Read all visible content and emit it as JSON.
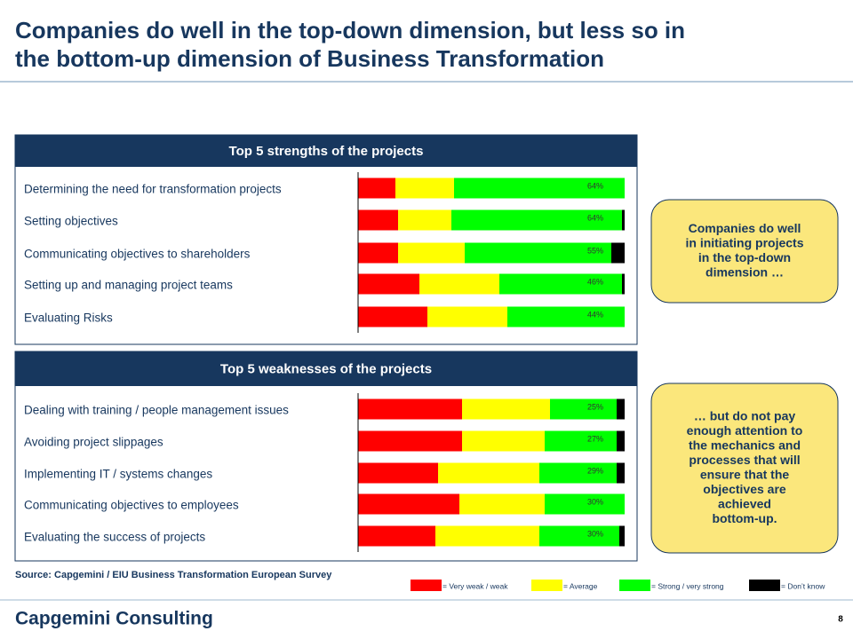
{
  "title_lines": [
    "Companies do well in the top-down dimension, but less so in",
    "the bottom-up dimension of Business Transformation"
  ],
  "chart_data": [
    {
      "type": "stacked-bar-horizontal",
      "title": "Top 5 strengths of the projects",
      "categories": [
        "Determining the need for transformation projects",
        "Setting objectives",
        "Communicating objectives to shareholders",
        "Setting up and managing project teams",
        "Evaluating Risks"
      ],
      "xlim": [
        0,
        100
      ],
      "series": [
        {
          "name": "= Very weak / weak",
          "color": "#ff0000",
          "values": [
            14,
            15,
            15,
            23,
            26
          ]
        },
        {
          "name": "= Average",
          "color": "#ffff00",
          "values": [
            22,
            20,
            25,
            30,
            30
          ]
        },
        {
          "name": "= Strong / very strong",
          "color": "#00ff00",
          "values": [
            64,
            64,
            55,
            46,
            44
          ],
          "value_labels": [
            "64%",
            "64%",
            "55%",
            "46%",
            "44%"
          ]
        },
        {
          "name": "= Don’t know",
          "color": "#000000",
          "values": [
            0,
            1,
            5,
            1,
            0
          ]
        }
      ]
    },
    {
      "type": "stacked-bar-horizontal",
      "title": "Top 5 weaknesses of the projects",
      "categories": [
        "Dealing with training / people management issues",
        "Avoiding project slippages",
        "Implementing IT / systems changes",
        "Communicating objectives to employees",
        "Evaluating the success of projects"
      ],
      "xlim": [
        0,
        100
      ],
      "series": [
        {
          "color": "#ff0000",
          "values": [
            39,
            39,
            30,
            38,
            29
          ]
        },
        {
          "color": "#ffff00",
          "values": [
            33,
            31,
            38,
            32,
            39
          ]
        },
        {
          "color": "#00ff00",
          "values": [
            25,
            27,
            29,
            30,
            30
          ],
          "value_labels": [
            "25%",
            "27%",
            "29%",
            "30%",
            "30%"
          ]
        },
        {
          "color": "#000000",
          "values": [
            3,
            3,
            3,
            0,
            2
          ]
        }
      ]
    }
  ],
  "callouts": [
    [
      "Companies do well",
      "in initiating projects",
      "in the top-down",
      "dimension …"
    ],
    [
      "… but do not pay",
      "enough attention to",
      "the mechanics and",
      "processes that will",
      "ensure that the",
      "objectives are",
      "achieved",
      "bottom-up."
    ]
  ],
  "source": "Source: Capgemini / EIU Business Transformation European Survey",
  "logo": "Capgemini Consulting",
  "page_number": "8"
}
